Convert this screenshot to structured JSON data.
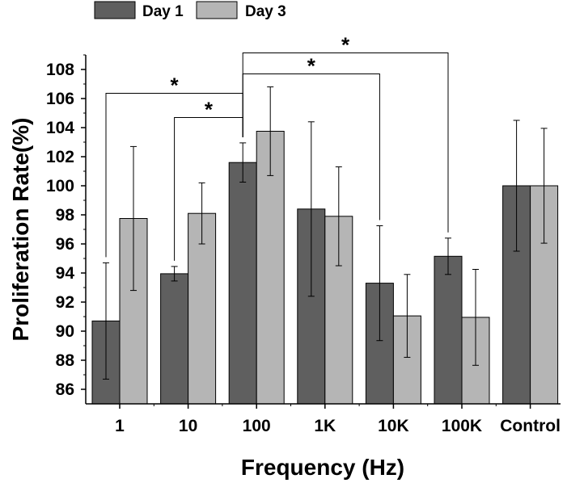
{
  "chart_data": {
    "type": "bar",
    "title": "",
    "xlabel": "Frequency (Hz)",
    "ylabel": "Proliferation Rate(%)",
    "categories": [
      "1",
      "10",
      "100",
      "1K",
      "10K",
      "100K",
      "Control"
    ],
    "ylim": [
      85,
      109
    ],
    "yticks": [
      86,
      88,
      90,
      92,
      94,
      96,
      98,
      100,
      102,
      104,
      106,
      108
    ],
    "grid": false,
    "legend_position": "top-left",
    "series": [
      {
        "name": "Day 1",
        "color": "#5f5f5f",
        "values": [
          90.7,
          93.95,
          101.6,
          98.4,
          93.3,
          95.15,
          100.0
        ],
        "errors": [
          4.0,
          0.5,
          1.35,
          6.0,
          3.95,
          1.25,
          4.5
        ]
      },
      {
        "name": "Day 3",
        "color": "#b5b5b5",
        "values": [
          97.75,
          98.1,
          103.75,
          97.9,
          91.05,
          90.95,
          100.0
        ],
        "errors": [
          4.95,
          2.1,
          3.05,
          3.4,
          2.85,
          3.3,
          3.95
        ]
      }
    ],
    "significance": [
      {
        "from_category": "1",
        "to_category": "100",
        "label": "*"
      },
      {
        "from_category": "10",
        "to_category": "100",
        "label": "*"
      },
      {
        "from_category": "100",
        "to_category": "10K",
        "label": "*"
      },
      {
        "from_category": "100",
        "to_category": "100K",
        "label": "*"
      }
    ]
  }
}
